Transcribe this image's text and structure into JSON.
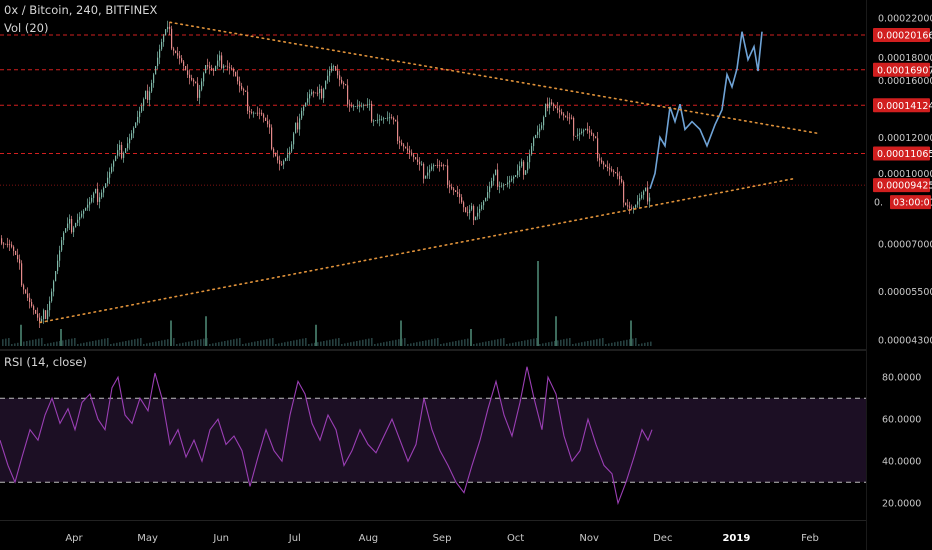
{
  "header": {
    "symbol_line": "0x / Bitcoin, 240, BITFINEX",
    "volume_label": "Vol (20)",
    "rsi_label": "RSI (14, close)"
  },
  "colors": {
    "background": "#000000",
    "up_candle": "#7fb8a8",
    "down_candle": "#e58a8a",
    "projection": "#6fa3d6",
    "level_line": "#d11f1f",
    "trendline": "#e0923a",
    "rsi_line": "#9b3fb5",
    "rsi_band": "#1c0f24",
    "volume": "#2f4f4f"
  },
  "chart_data": [
    {
      "type": "candlestick",
      "x_axis": [
        "Apr",
        "May",
        "Jun",
        "Jul",
        "Aug",
        "Sep",
        "Oct",
        "Nov",
        "Dec",
        "2019",
        "Feb"
      ],
      "y_ticks": [
        "0.00022000",
        "0.00018000",
        "0.00016000",
        "0.00012000",
        "0.00010000",
        "0.00007000",
        "0.00005500",
        "0.00004300"
      ],
      "y_scale": "log",
      "ylim": [
        4.3e-05,
        0.000222
      ],
      "price_path": [
        [
          0,
          7.2e-05
        ],
        [
          10,
          6.9e-05
        ],
        [
          20,
          6e-05
        ],
        [
          30,
          5.2e-05
        ],
        [
          40,
          4.55e-05
        ],
        [
          50,
          5.5e-05
        ],
        [
          62,
          7.2e-05
        ],
        [
          75,
          8e-05
        ],
        [
          90,
          8.5e-05
        ],
        [
          105,
          9.6e-05
        ],
        [
          118,
          0.00011
        ],
        [
          130,
          0.000122
        ],
        [
          142,
          0.000138
        ],
        [
          152,
          0.000165
        ],
        [
          160,
          0.00019
        ],
        [
          166,
          0.000205
        ],
        [
          172,
          0.000195
        ],
        [
          180,
          0.00018
        ],
        [
          188,
          0.00016
        ],
        [
          196,
          0.00015
        ],
        [
          205,
          0.000175
        ],
        [
          213,
          0.000165
        ],
        [
          222,
          0.00018
        ],
        [
          232,
          0.00017
        ],
        [
          240,
          0.00015
        ],
        [
          250,
          0.00014
        ],
        [
          260,
          0.000135
        ],
        [
          270,
          0.00012
        ],
        [
          280,
          0.000105
        ],
        [
          290,
          0.00011
        ],
        [
          300,
          0.00014
        ],
        [
          310,
          0.00015
        ],
        [
          318,
          0.000145
        ],
        [
          325,
          0.000165
        ],
        [
          332,
          0.000175
        ],
        [
          340,
          0.000155
        ],
        [
          350,
          0.000145
        ],
        [
          360,
          0.00014
        ],
        [
          375,
          0.000135
        ],
        [
          390,
          0.00013
        ],
        [
          400,
          0.00012
        ],
        [
          410,
          0.00011
        ],
        [
          420,
          0.0001
        ],
        [
          432,
          0.000105
        ],
        [
          445,
          0.0001
        ],
        [
          458,
          9e-05
        ],
        [
          466,
          7.9e-05
        ],
        [
          475,
          8.3e-05
        ],
        [
          485,
          8.8e-05
        ],
        [
          495,
          9.8e-05
        ],
        [
          505,
          9.6e-05
        ],
        [
          515,
          9.7e-05
        ],
        [
          525,
          0.000105
        ],
        [
          533,
          0.00012
        ],
        [
          542,
          0.000125
        ],
        [
          548,
          0.00015
        ],
        [
          556,
          0.00014
        ],
        [
          565,
          0.00013
        ],
        [
          575,
          0.000125
        ],
        [
          585,
          0.000125
        ],
        [
          595,
          0.000115
        ],
        [
          605,
          0.000105
        ],
        [
          615,
          9.8e-05
        ],
        [
          625,
          8.8e-05
        ],
        [
          632,
          8.4e-05
        ],
        [
          642,
          8.8e-05
        ],
        [
          650,
          9.25e-05
        ]
      ],
      "projection_path": [
        [
          650,
          9.25e-05
        ],
        [
          655,
          0.0001
        ],
        [
          660,
          0.00012
        ],
        [
          665,
          0.000115
        ],
        [
          670,
          0.00014
        ],
        [
          675,
          0.00013
        ],
        [
          680,
          0.000142
        ],
        [
          685,
          0.000125
        ],
        [
          692,
          0.00013
        ],
        [
          700,
          0.000125
        ],
        [
          707,
          0.000115
        ],
        [
          715,
          0.000128
        ],
        [
          722,
          0.000138
        ],
        [
          727,
          0.000165
        ],
        [
          732,
          0.000155
        ],
        [
          737,
          0.00017
        ],
        [
          742,
          0.000205
        ],
        [
          748,
          0.000178
        ],
        [
          754,
          0.00019
        ],
        [
          758,
          0.000168
        ],
        [
          762,
          0.000205
        ]
      ],
      "volume_spikes": [
        [
          20,
          0.25
        ],
        [
          60,
          0.2
        ],
        [
          170,
          0.3
        ],
        [
          205,
          0.35
        ],
        [
          315,
          0.25
        ],
        [
          400,
          0.3
        ],
        [
          470,
          0.2
        ],
        [
          537,
          1.0
        ],
        [
          555,
          0.35
        ],
        [
          630,
          0.3
        ]
      ],
      "levels": [
        {
          "label": "0.00020166",
          "value": 0.00020166
        },
        {
          "label": "0.00016907",
          "value": 0.00016907
        },
        {
          "label": "0.00014124",
          "value": 0.00014124
        },
        {
          "label": "0.00011065",
          "value": 0.00011065
        },
        {
          "label": "0.00009425",
          "value": 9.425e-05
        }
      ],
      "countdown": "03:00:01",
      "countdown_prefix": "0.",
      "trendlines": [
        {
          "name": "descending",
          "from": [
            170,
            0.000215
          ],
          "to": [
            818,
            0.0001225
          ]
        },
        {
          "name": "ascending",
          "from": [
            40,
            4.7e-05
          ],
          "to": [
            795,
            9.75e-05
          ]
        }
      ]
    },
    {
      "type": "line",
      "y_ticks": [
        "80.0000",
        "60.0000",
        "40.0000",
        "20.0000"
      ],
      "ylim": [
        12,
        92
      ],
      "band": [
        30,
        70
      ],
      "rsi_path": [
        [
          0,
          50
        ],
        [
          8,
          38
        ],
        [
          15,
          30
        ],
        [
          22,
          42
        ],
        [
          30,
          55
        ],
        [
          38,
          50
        ],
        [
          45,
          62
        ],
        [
          52,
          70
        ],
        [
          60,
          58
        ],
        [
          68,
          65
        ],
        [
          75,
          55
        ],
        [
          82,
          68
        ],
        [
          90,
          72
        ],
        [
          98,
          60
        ],
        [
          105,
          55
        ],
        [
          112,
          75
        ],
        [
          118,
          80
        ],
        [
          125,
          62
        ],
        [
          132,
          58
        ],
        [
          140,
          70
        ],
        [
          148,
          64
        ],
        [
          155,
          82
        ],
        [
          162,
          70
        ],
        [
          170,
          48
        ],
        [
          178,
          55
        ],
        [
          186,
          42
        ],
        [
          194,
          50
        ],
        [
          202,
          40
        ],
        [
          210,
          55
        ],
        [
          218,
          60
        ],
        [
          226,
          48
        ],
        [
          234,
          52
        ],
        [
          242,
          45
        ],
        [
          250,
          28
        ],
        [
          258,
          42
        ],
        [
          266,
          55
        ],
        [
          274,
          45
        ],
        [
          282,
          40
        ],
        [
          290,
          62
        ],
        [
          298,
          78
        ],
        [
          305,
          72
        ],
        [
          312,
          58
        ],
        [
          320,
          50
        ],
        [
          328,
          62
        ],
        [
          336,
          55
        ],
        [
          344,
          38
        ],
        [
          352,
          45
        ],
        [
          360,
          55
        ],
        [
          368,
          48
        ],
        [
          376,
          44
        ],
        [
          384,
          52
        ],
        [
          392,
          60
        ],
        [
          400,
          50
        ],
        [
          408,
          40
        ],
        [
          416,
          48
        ],
        [
          424,
          70
        ],
        [
          432,
          55
        ],
        [
          440,
          45
        ],
        [
          448,
          38
        ],
        [
          456,
          30
        ],
        [
          464,
          25
        ],
        [
          472,
          38
        ],
        [
          480,
          50
        ],
        [
          488,
          65
        ],
        [
          496,
          78
        ],
        [
          504,
          62
        ],
        [
          512,
          52
        ],
        [
          520,
          68
        ],
        [
          527,
          85
        ],
        [
          534,
          70
        ],
        [
          542,
          55
        ],
        [
          548,
          80
        ],
        [
          556,
          72
        ],
        [
          564,
          52
        ],
        [
          572,
          40
        ],
        [
          580,
          45
        ],
        [
          588,
          60
        ],
        [
          596,
          48
        ],
        [
          604,
          38
        ],
        [
          612,
          34
        ],
        [
          618,
          20
        ],
        [
          626,
          30
        ],
        [
          634,
          42
        ],
        [
          642,
          55
        ],
        [
          648,
          50
        ],
        [
          652,
          55
        ]
      ]
    }
  ]
}
